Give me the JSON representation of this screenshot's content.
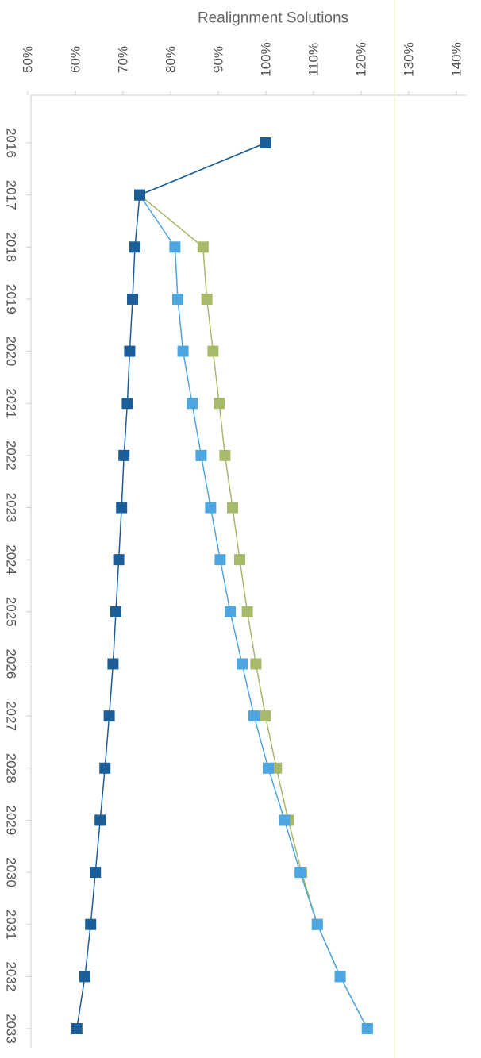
{
  "chart_data": {
    "type": "line",
    "title": "Realignment Solutions",
    "xlabel": "",
    "ylabel": "",
    "x": [
      2016,
      2017,
      2018,
      2019,
      2020,
      2021,
      2022,
      2023,
      2024,
      2025,
      2026,
      2027,
      2028,
      2029,
      2030,
      2031,
      2032,
      2033
    ],
    "x_tick_labels": [
      "2016",
      "2017",
      "2018",
      "2019",
      "2020",
      "2021",
      "2022",
      "2023",
      "2024",
      "2025",
      "2026",
      "2027",
      "2028",
      "2029",
      "2030",
      "2031",
      "2032",
      "2033"
    ],
    "ylim": [
      50,
      140
    ],
    "y_ticks": [
      50,
      60,
      70,
      80,
      90,
      100,
      110,
      120,
      130,
      140
    ],
    "y_tick_labels": [
      "50%",
      "60%",
      "70%",
      "80%",
      "90%",
      "100%",
      "110%",
      "120%",
      "130%",
      "140%"
    ],
    "reference_line": 127,
    "grid": false,
    "orientation": "rotated-90-clockwise",
    "series": [
      {
        "color": "#a7b96a",
        "values": [
          100,
          73.5,
          86.8,
          87.6,
          88.9,
          90.2,
          91.4,
          93,
          94.5,
          96.1,
          97.9,
          99.9,
          102.2,
          104.7,
          107.5,
          110.8,
          115.6,
          121.3
        ]
      },
      {
        "color": "#4da6e0",
        "values": [
          100,
          73.5,
          80.9,
          81.5,
          82.6,
          84.5,
          86.4,
          88.4,
          90.4,
          92.5,
          95,
          97.5,
          100.5,
          103.9,
          107.2,
          110.8,
          115.6,
          121.3
        ]
      },
      {
        "color": "#1c5f98",
        "values": [
          100,
          73.5,
          72.5,
          72,
          71.4,
          70.9,
          70.2,
          69.7,
          69.1,
          68.5,
          67.9,
          67.1,
          66.2,
          65.2,
          64.2,
          63.2,
          62,
          60.3
        ]
      }
    ]
  }
}
